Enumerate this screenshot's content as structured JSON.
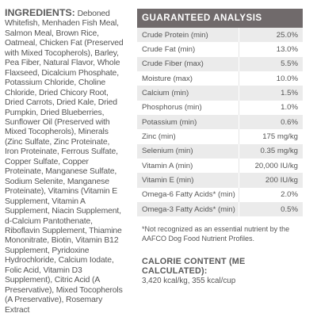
{
  "ingredients": {
    "heading": "INGREDIENTS:",
    "text": "Deboned Whitefish, Menhaden Fish Meal, Salmon Meal, Brown Rice, Oatmeal, Chicken Fat (Preserved with Mixed Tocopherols), Barley, Pea Fiber, Natural Flavor, Whole Flaxseed, Dicalcium Phosphate, Potassium Chloride, Choline Chloride, Dried Chicory Root, Dried Carrots, Dried Kale, Dried Pumpkin, Dried Blueberries, Sunflower Oil (Preserved with Mixed Tocopherols), Minerals (Zinc Sulfate, Zinc Proteinate, Iron Proteinate, Ferrous Sulfate, Copper Sulfate, Copper Proteinate, Manganese Sulfate, Sodium Selenite, Manganese Proteinate), Vitamins (Vitamin E Supplement, Vitamin A Supplement, Niacin Supplement, d-Calcium Pantothenate, Riboflavin Supplement, Thiamine Mononitrate, Biotin, Vitamin B12 Supplement, Pyridoxine Hydrochloride, Calcium Iodate, Folic Acid, Vitamin D3 Supplement), Citric Acid (A Preservative), Mixed Tocopherols (A Preservative), Rosemary Extract"
  },
  "guaranteed_analysis": {
    "title": "GUARANTEED ANALYSIS",
    "rows": [
      {
        "label": "Crude Protein (min)",
        "value": "25.0%"
      },
      {
        "label": "Crude Fat (min)",
        "value": "13.0%"
      },
      {
        "label": "Crude Fiber (max)",
        "value": "5.5%"
      },
      {
        "label": "Moisture (max)",
        "value": "10.0%"
      },
      {
        "label": "Calcium (min)",
        "value": "1.5%"
      },
      {
        "label": "Phosphorus (min)",
        "value": "1.0%"
      },
      {
        "label": "Potassium (min)",
        "value": "0.6%"
      },
      {
        "label": "Zinc (min)",
        "value": "175 mg/kg"
      },
      {
        "label": "Selenium (min)",
        "value": "0.35 mg/kg"
      },
      {
        "label": "Vitamin A (min)",
        "value": "20,000 IU/kg"
      },
      {
        "label": "Vitamin E (min)",
        "value": "200 IU/kg"
      },
      {
        "label": "Omega-6 Fatty Acids* (min)",
        "value": "2.0%"
      },
      {
        "label": "Omega-3 Fatty Acids* (min)",
        "value": "0.5%"
      }
    ],
    "footnote": "*Not recognized as an essential nutrient by the AAFCO Dog Food Nutrient Profiles."
  },
  "calorie_content": {
    "heading": "CALORIE CONTENT (ME CALCULATED):",
    "value": "3,420 kcal/kg, 355 kcal/cup"
  }
}
